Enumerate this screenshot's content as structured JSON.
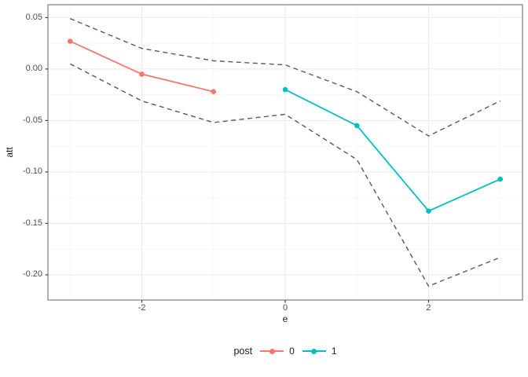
{
  "figure": {
    "background": "#FFFFFF"
  },
  "chart_data": {
    "type": "line",
    "title": "",
    "xlabel": "e",
    "ylabel": "att",
    "x": [
      -3,
      -2,
      -1,
      0,
      1,
      2,
      3
    ],
    "series": [
      {
        "name": "0",
        "color": "#F8766D",
        "x": [
          -3,
          -2,
          -1
        ],
        "values": [
          0.027,
          -0.005,
          -0.022
        ]
      },
      {
        "name": "1",
        "color": "#00BFC4",
        "x": [
          0,
          1,
          2,
          3
        ],
        "values": [
          -0.02,
          -0.055,
          -0.138,
          -0.107
        ]
      }
    ],
    "confidence_band": {
      "style": "dashed",
      "color": "#595959",
      "x": [
        -3,
        -2,
        -1,
        0,
        1,
        2,
        3
      ],
      "upper": [
        0.049,
        0.02,
        0.008,
        0.004,
        -0.022,
        -0.065,
        -0.031
      ],
      "lower": [
        0.005,
        -0.031,
        -0.052,
        -0.044,
        -0.088,
        -0.211,
        -0.183
      ]
    },
    "xlim": [
      -3.31,
      3.31
    ],
    "ylim": [
      -0.2245,
      0.0625
    ],
    "x_major_ticks": [
      -2,
      0,
      2
    ],
    "x_major_labels": [
      "-2",
      "0",
      "2"
    ],
    "x_minor_ticks": [
      -3,
      -1,
      1,
      3
    ],
    "y_major_ticks": [
      0.05,
      0.0,
      -0.05,
      -0.1,
      -0.15,
      -0.2
    ],
    "y_major_labels": [
      "0.05",
      "0.00",
      "-0.05",
      "-0.10",
      "-0.15",
      "-0.20"
    ],
    "y_minor_ticks": [
      0.025,
      -0.025,
      -0.075,
      -0.125,
      -0.175
    ],
    "grid": {
      "on": true,
      "major_color": "#EBEBEB",
      "minor_color": "#F5F5F5"
    },
    "panel_border_color": "#858585",
    "tick_mark_color": "#333333",
    "legend": {
      "position": "bottom",
      "title": "post",
      "entries": [
        {
          "label": "0",
          "color": "#F8766D"
        },
        {
          "label": "1",
          "color": "#00BFC4"
        }
      ]
    }
  }
}
